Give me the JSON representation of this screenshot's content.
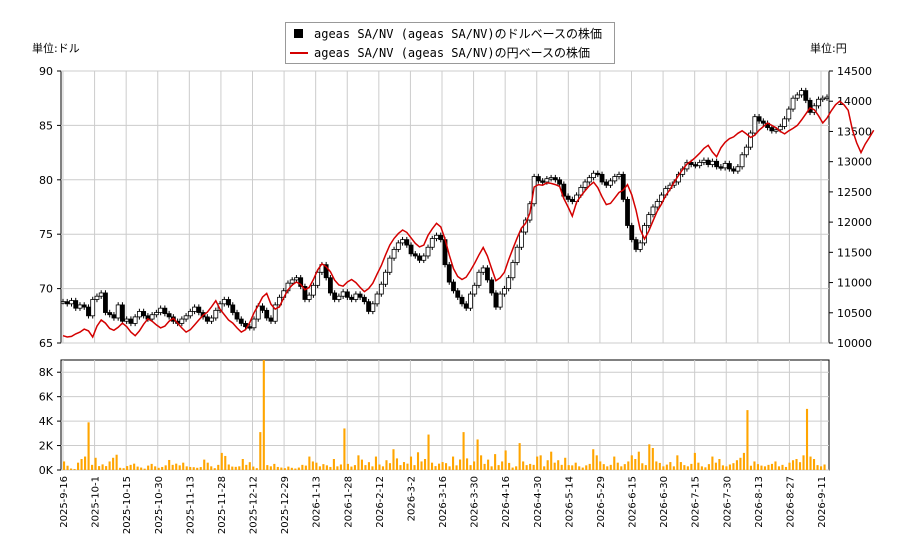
{
  "legend": {
    "usd_label": "ageas SA/NV (ageas SA/NV)のドルベースの株価",
    "jpy_label": "ageas SA/NV (ageas SA/NV)の円ベースの株価"
  },
  "units": {
    "left": "単位:ドル",
    "right": "単位:円"
  },
  "colors": {
    "candle_up": "#ffffff",
    "candle_down": "#000000",
    "yen_line": "#d40000",
    "volume": "#ffa500",
    "grid": "#cccccc"
  },
  "chart_data": [
    {
      "type": "line",
      "title": "",
      "y_left": {
        "min": 65,
        "max": 90,
        "ticks": [
          65,
          70,
          75,
          80,
          85,
          90
        ]
      },
      "y_right": {
        "min": 10000,
        "max": 14500,
        "ticks": [
          10000,
          10500,
          11000,
          11500,
          12000,
          12500,
          13000,
          13500,
          14000,
          14500
        ]
      },
      "x_ticks": [
        "2025-9-16",
        "2025-10-1",
        "2025-10-15",
        "2025-10-30",
        "2025-11-13",
        "2025-11-28",
        "2025-12-12",
        "2025-12-29",
        "2026-1-13",
        "2026-1-28",
        "2026-2-12",
        "2026-3-2",
        "2026-3-16",
        "2026-3-30",
        "2026-4-16",
        "2026-4-30",
        "2026-5-14",
        "2026-5-29",
        "2026-6-15",
        "2026-6-30",
        "2026-7-15",
        "2026-7-30",
        "2026-8-13",
        "2026-8-27",
        "2026-9-11"
      ],
      "series": [
        {
          "name": "ageas SA/NV (ageas SA/NV)のドルベースの株価",
          "kind": "candlestick",
          "values": [
            68.8,
            68.6,
            68.9,
            68.2,
            68.5,
            68.3,
            67.5,
            69.0,
            69.3,
            69.6,
            67.8,
            67.6,
            67.3,
            68.5,
            67.0,
            67.2,
            66.8,
            67.4,
            67.9,
            67.5,
            67.2,
            67.6,
            67.8,
            68.2,
            67.7,
            67.4,
            67.0,
            66.8,
            67.2,
            67.5,
            67.9,
            68.3,
            67.8,
            67.4,
            67.0,
            67.3,
            68.0,
            68.6,
            69.0,
            68.5,
            67.8,
            67.2,
            66.8,
            66.5,
            66.4,
            67.2,
            68.4,
            68.0,
            67.3,
            67.0,
            68.5,
            69.2,
            69.8,
            70.5,
            70.8,
            71.0,
            70.2,
            69.0,
            69.4,
            70.3,
            71.5,
            72.2,
            71.0,
            69.6,
            69.0,
            69.3,
            69.7,
            69.2,
            69.0,
            69.5,
            69.2,
            68.8,
            67.9,
            68.6,
            69.5,
            70.4,
            71.5,
            72.8,
            73.6,
            74.2,
            74.5,
            74.0,
            73.2,
            73.0,
            72.6,
            73.0,
            73.8,
            74.6,
            74.9,
            74.5,
            72.2,
            70.6,
            69.8,
            69.2,
            68.6,
            68.2,
            69.5,
            70.3,
            71.5,
            71.9,
            70.8,
            69.6,
            68.3,
            69.5,
            70.0,
            71.0,
            72.4,
            73.8,
            75.2,
            76.3,
            77.8,
            80.3,
            79.9,
            79.8,
            80.1,
            80.2,
            80.0,
            79.6,
            78.5,
            78.2,
            78.0,
            78.6,
            79.3,
            79.8,
            80.2,
            80.6,
            80.5,
            79.8,
            79.5,
            79.9,
            80.3,
            80.5,
            78.2,
            75.8,
            74.5,
            73.6,
            74.2,
            75.8,
            76.8,
            77.5,
            78.0,
            78.6,
            79.2,
            79.5,
            79.8,
            80.5,
            81.0,
            81.6,
            81.4,
            81.3,
            81.6,
            81.8,
            81.4,
            81.7,
            81.2,
            81.1,
            81.5,
            81.0,
            80.8,
            81.2,
            82.3,
            83.0,
            84.3,
            85.8,
            85.4,
            85.2,
            84.8,
            84.5,
            84.6,
            84.9,
            85.6,
            86.5,
            87.5,
            87.8,
            88.2,
            87.3,
            86.2,
            86.8,
            87.4,
            87.5,
            87.6
          ],
          "up_color": "#ffffff",
          "down_color": "#000000"
        },
        {
          "name": "ageas SA/NV (ageas SA/NV)の円ベースの株価",
          "kind": "line",
          "axis": "right",
          "values": [
            10120,
            10100,
            10110,
            10150,
            10180,
            10230,
            10200,
            10100,
            10280,
            10380,
            10330,
            10240,
            10210,
            10260,
            10330,
            10270,
            10180,
            10120,
            10200,
            10310,
            10400,
            10360,
            10300,
            10250,
            10280,
            10360,
            10410,
            10330,
            10250,
            10180,
            10220,
            10300,
            10380,
            10460,
            10510,
            10600,
            10700,
            10560,
            10470,
            10380,
            10330,
            10250,
            10180,
            10220,
            10340,
            10500,
            10620,
            10760,
            10820,
            10640,
            10560,
            10600,
            10750,
            10880,
            10960,
            11010,
            10970,
            10880,
            10920,
            11050,
            11210,
            11310,
            11260,
            11180,
            11040,
            10960,
            10940,
            11010,
            11050,
            11000,
            10920,
            10850,
            10900,
            10990,
            11140,
            11280,
            11460,
            11620,
            11730,
            11810,
            11870,
            11830,
            11740,
            11650,
            11590,
            11620,
            11780,
            11890,
            11980,
            11920,
            11720,
            11460,
            11230,
            11100,
            11050,
            11090,
            11200,
            11320,
            11460,
            11580,
            11440,
            11230,
            11030,
            11080,
            11170,
            11380,
            11560,
            11740,
            11900,
            11980,
            12150,
            12580,
            12620,
            12610,
            12650,
            12640,
            12620,
            12590,
            12390,
            12250,
            12100,
            12330,
            12430,
            12520,
            12600,
            12660,
            12570,
            12420,
            12290,
            12310,
            12400,
            12490,
            12530,
            12620,
            12450,
            12200,
            11880,
            11720,
            11850,
            12020,
            12180,
            12300,
            12440,
            12540,
            12660,
            12770,
            12870,
            12960,
            13010,
            13070,
            13140,
            13220,
            13270,
            13160,
            13080,
            13230,
            13320,
            13380,
            13410,
            13470,
            13510,
            13460,
            13400,
            13440,
            13520,
            13580,
            13640,
            13600,
            13560,
            13500,
            13460,
            13510,
            13550,
            13600,
            13690,
            13790,
            13890,
            13860,
            13760,
            13640,
            13720,
            13840,
            13940,
            14000,
            13940,
            13850,
            13520,
            13310,
            13150,
            13290,
            13400,
            13520
          ]
        }
      ]
    },
    {
      "type": "bar",
      "title": "",
      "ylim": [
        0,
        9000
      ],
      "y_ticks": [
        "0K",
        "2K",
        "4K",
        "6K",
        "8K"
      ],
      "series": [
        {
          "name": "",
          "values": [
            700,
            350,
            120,
            80,
            600,
            900,
            1100,
            3900,
            420,
            1000,
            320,
            460,
            320,
            700,
            1000,
            1250,
            180,
            150,
            320,
            420,
            520,
            280,
            200,
            110,
            360,
            500,
            300,
            180,
            250,
            380,
            820,
            420,
            520,
            380,
            600,
            300,
            250,
            230,
            180,
            240,
            850,
            600,
            300,
            150,
            420,
            1400,
            1150,
            450,
            280,
            260,
            300,
            900,
            420,
            640,
            280,
            150,
            3100,
            9000,
            400,
            300,
            500,
            250,
            200,
            150,
            280,
            180,
            120,
            200,
            420,
            360,
            1100,
            700,
            600,
            300,
            480,
            380,
            250,
            900,
            300,
            450,
            3400,
            500,
            280,
            400,
            1200,
            850,
            400,
            640,
            300,
            1100,
            450,
            300,
            800,
            560,
            1700,
            950,
            400,
            650,
            520,
            1100,
            400,
            1450,
            700,
            900,
            2900,
            600,
            320,
            520,
            650,
            560,
            300,
            1100,
            380,
            860,
            3100,
            950,
            400,
            700,
            2500,
            1200,
            500,
            850,
            300,
            1300,
            400,
            700,
            1600,
            580,
            200,
            300,
            2200,
            700,
            400,
            500,
            420,
            1100,
            1200,
            300,
            800,
            1500,
            600,
            800,
            420,
            1000,
            400,
            380,
            600,
            300,
            200,
            380,
            500,
            1700,
            1200,
            700,
            480,
            300,
            420,
            1100,
            600,
            300,
            480,
            700,
            1200,
            900,
            1500,
            550,
            400,
            2100,
            1800,
            700,
            580,
            300,
            440,
            650,
            300,
            1200,
            650,
            400,
            300,
            500,
            1400,
            600,
            300,
            220,
            480,
            1100,
            600,
            900,
            380,
            300,
            450,
            560,
            800,
            1000,
            1400,
            4900,
            350,
            700,
            480,
            360,
            300,
            420,
            500,
            700,
            300,
            420,
            250,
            600,
            800,
            900,
            640,
            1200,
            5000,
            1100,
            900,
            400,
            300,
            450
          ]
        }
      ]
    }
  ]
}
